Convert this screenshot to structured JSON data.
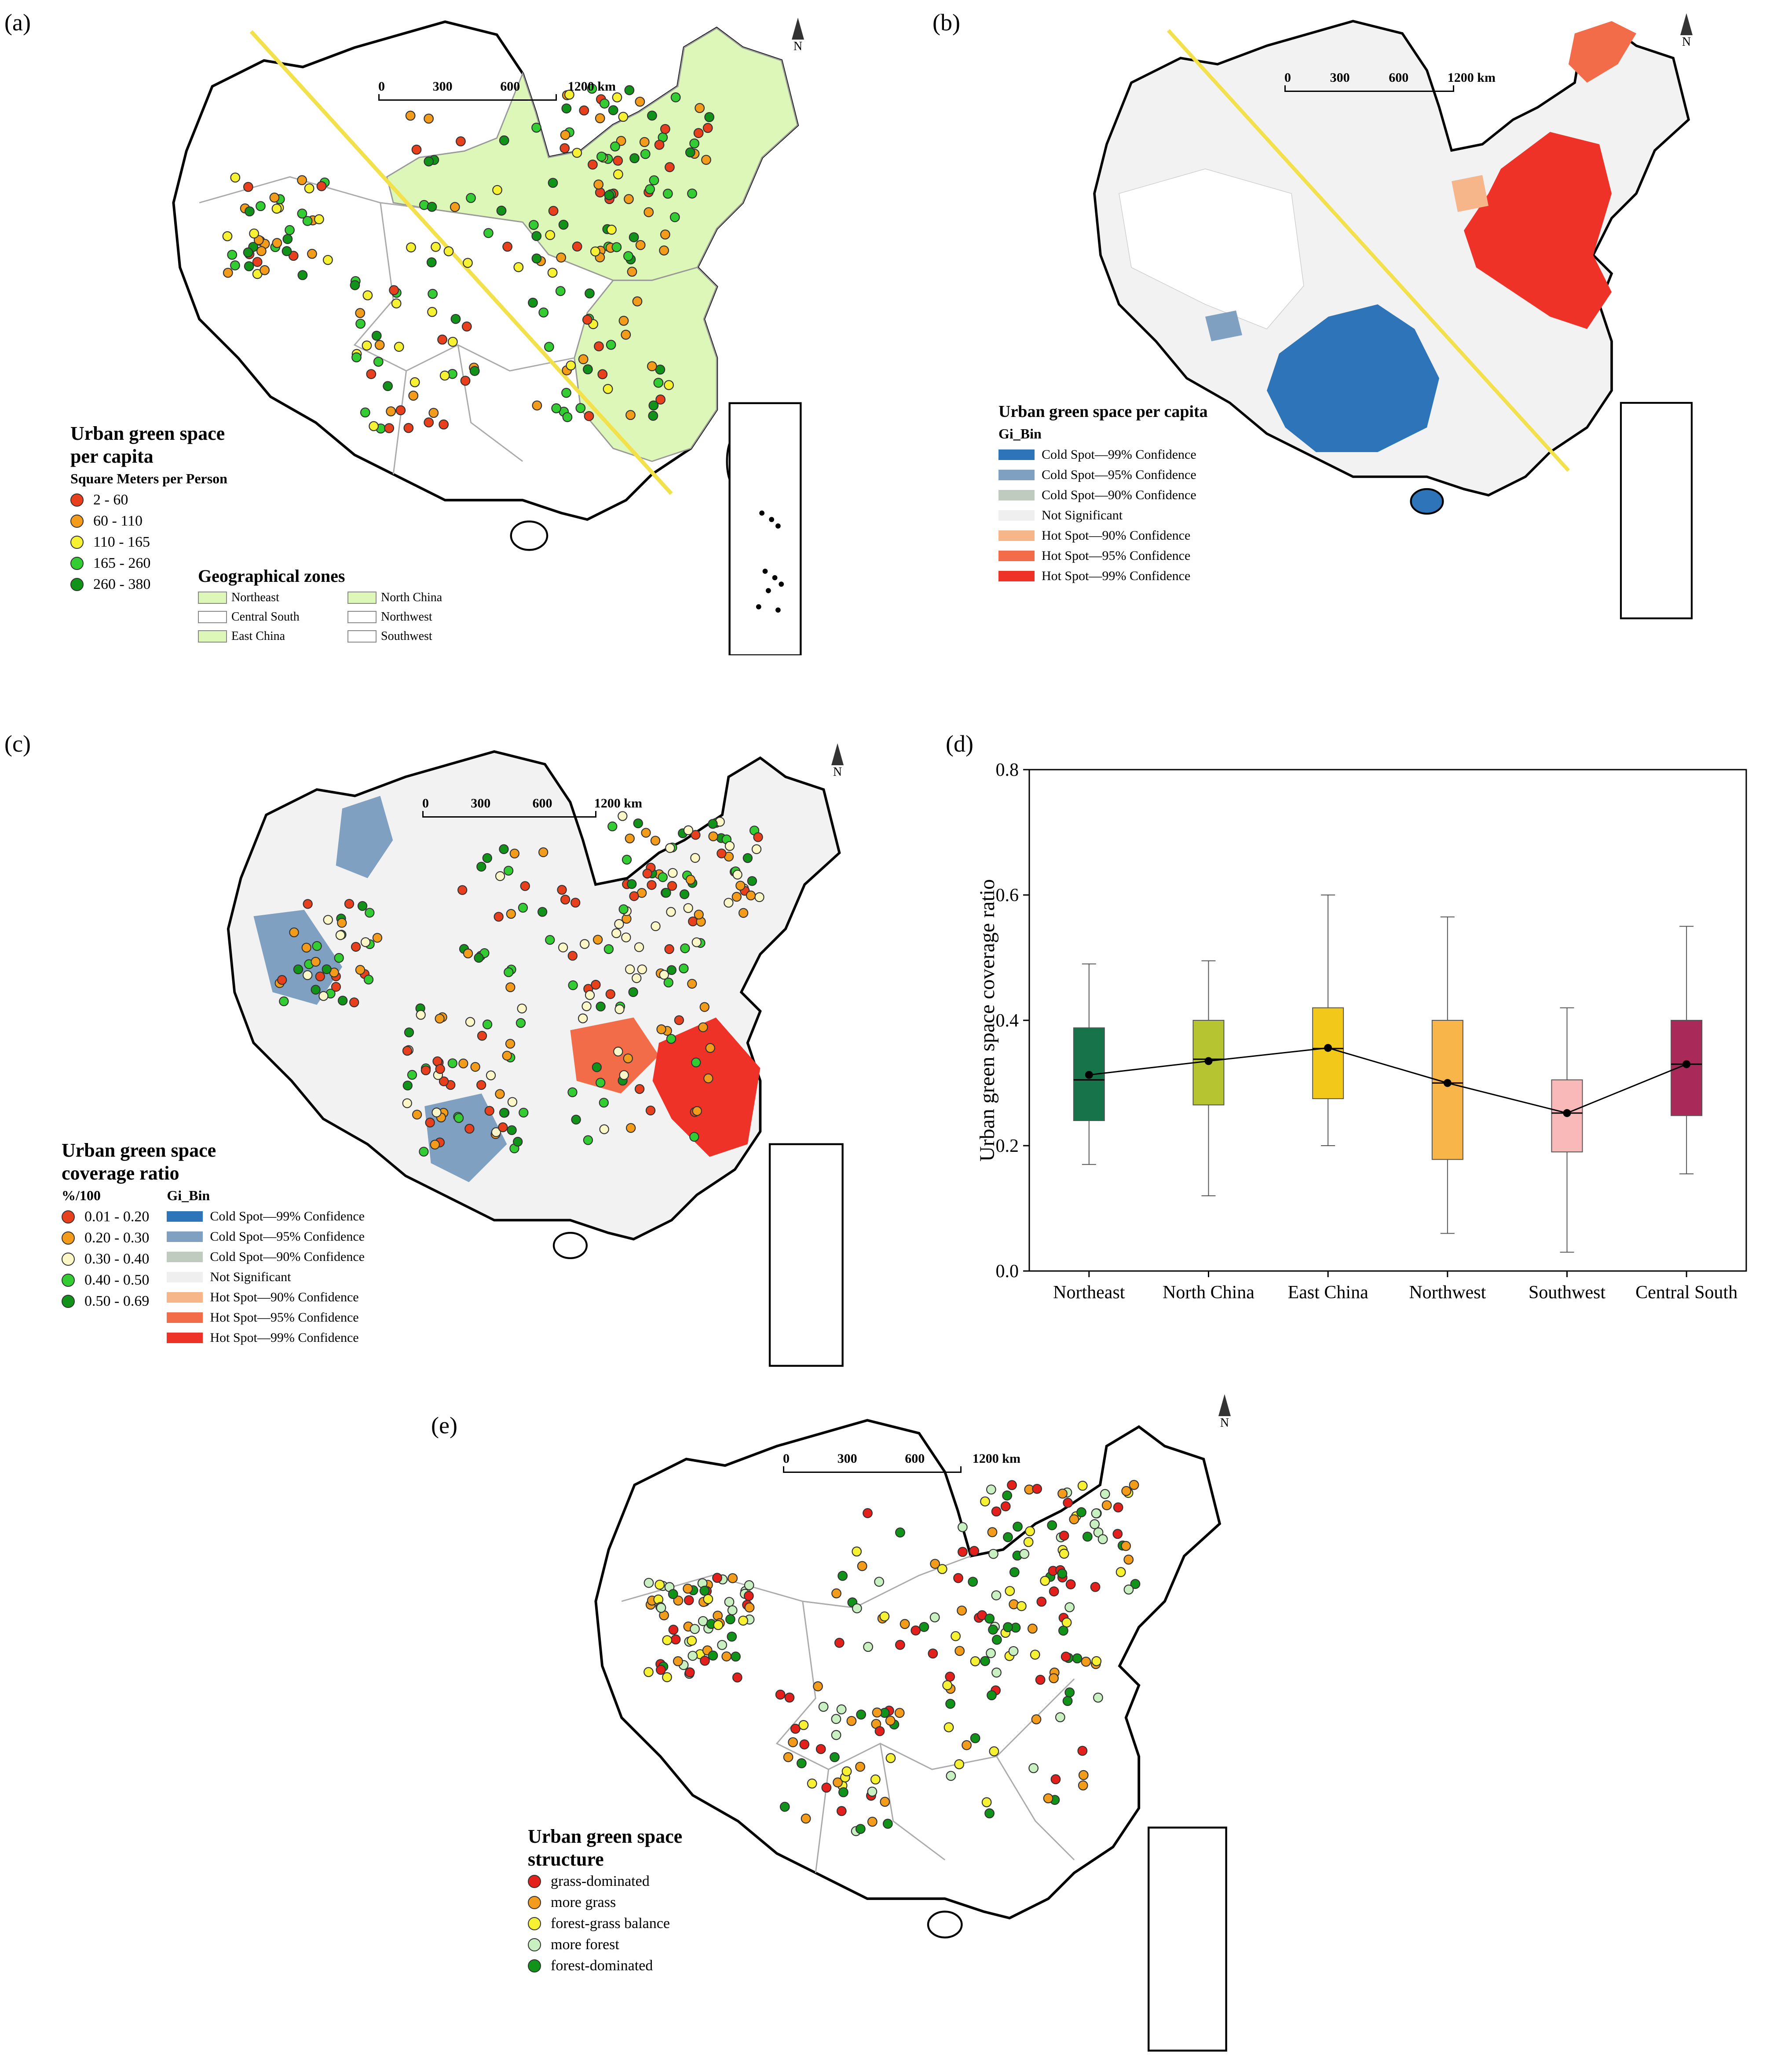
{
  "panel_a": {
    "label": "(a)",
    "scale": {
      "t0": "0",
      "t1": "300",
      "t2": "600",
      "t3": "1200 km"
    },
    "north": "N",
    "legend_title": "Urban green space per capita",
    "legend_sub": "Square Meters per Person",
    "classes": [
      {
        "label": "2 - 60",
        "color": "#e8401c"
      },
      {
        "label": "60 - 110",
        "color": "#f39c1b"
      },
      {
        "label": "110 - 165",
        "color": "#f6f233"
      },
      {
        "label": "165 - 260",
        "color": "#33cc33"
      },
      {
        "label": "260 - 380",
        "color": "#11931a"
      }
    ],
    "zones_title": "Geographical zones",
    "zones": [
      {
        "label": "Northeast",
        "fill": "#ddf7b8"
      },
      {
        "label": "North China",
        "fill": "#ddf7b8"
      },
      {
        "label": "Central South",
        "fill": "#ffffff"
      },
      {
        "label": "Northwest",
        "fill": "#ffffff"
      },
      {
        "label": "East China",
        "fill": "#ddf7b8"
      },
      {
        "label": "Southwest",
        "fill": "#ffffff"
      }
    ]
  },
  "panel_b": {
    "label": "(b)",
    "scale": {
      "t0": "0",
      "t1": "300",
      "t2": "600",
      "t3": "1200 km"
    },
    "north": "N",
    "legend_title": "Urban green space per capita",
    "legend_sub": "Gi_Bin",
    "bins": [
      {
        "label": "Cold Spot—99% Confidence",
        "color": "#2e74b9"
      },
      {
        "label": "Cold Spot—95% Confidence",
        "color": "#7fa0c0"
      },
      {
        "label": "Cold Spot—90% Confidence",
        "color": "#c0cbc0"
      },
      {
        "label": "Not Significant",
        "color": "#efefef"
      },
      {
        "label": "Hot Spot—90% Confidence",
        "color": "#f7b58a"
      },
      {
        "label": "Hot Spot—95% Confidence",
        "color": "#f26c4a"
      },
      {
        "label": "Hot Spot—99% Confidence",
        "color": "#ee3228"
      }
    ]
  },
  "panel_c": {
    "label": "(c)",
    "scale": {
      "t0": "0",
      "t1": "300",
      "t2": "600",
      "t3": "1200 km"
    },
    "north": "N",
    "legend_title": "Urban green space coverage ratio",
    "legend_sub": "%/100",
    "classes": [
      {
        "label": "0.01 - 0.20",
        "color": "#e8401c"
      },
      {
        "label": "0.20 - 0.30",
        "color": "#f39c1b"
      },
      {
        "label": "0.30 - 0.40",
        "color": "#fbf7c6"
      },
      {
        "label": "0.40 - 0.50",
        "color": "#33cc33"
      },
      {
        "label": "0.50 - 0.69",
        "color": "#11931a"
      }
    ],
    "bin_title": "Gi_Bin",
    "bins": [
      {
        "label": "Cold Spot—99% Confidence",
        "color": "#2e74b9"
      },
      {
        "label": "Cold Spot—95% Confidence",
        "color": "#7fa0c0"
      },
      {
        "label": "Cold Spot—90% Confidence",
        "color": "#c0cbc0"
      },
      {
        "label": "Not Significant",
        "color": "#efefef"
      },
      {
        "label": "Hot Spot—90% Confidence",
        "color": "#f7b58a"
      },
      {
        "label": "Hot Spot—95% Confidence",
        "color": "#f26c4a"
      },
      {
        "label": "Hot Spot—99% Confidence",
        "color": "#ee3228"
      }
    ]
  },
  "panel_d": {
    "label": "(d)",
    "chart_data": {
      "type": "box",
      "title": "",
      "xlabel": "",
      "ylabel": "Urban green space coverage ratio",
      "ylim": [
        0.0,
        0.8
      ],
      "yticks": [
        "0.0",
        "0.2",
        "0.4",
        "0.6",
        "0.8"
      ],
      "ytick_values": [
        0.0,
        0.2,
        0.4,
        0.6,
        0.8
      ],
      "categories": [
        "Northeast",
        "North China",
        "East China",
        "Northwest",
        "Southwest",
        "Central South"
      ],
      "boxes": [
        {
          "min": 0.17,
          "q1": 0.24,
          "median": 0.305,
          "q3": 0.388,
          "max": 0.49,
          "mean": 0.313,
          "color": "#16734a"
        },
        {
          "min": 0.12,
          "q1": 0.265,
          "median": 0.338,
          "q3": 0.4,
          "max": 0.495,
          "mean": 0.335,
          "color": "#b5c430"
        },
        {
          "min": 0.2,
          "q1": 0.275,
          "median": 0.355,
          "q3": 0.42,
          "max": 0.6,
          "mean": 0.356,
          "color": "#f2c81b"
        },
        {
          "min": 0.06,
          "q1": 0.178,
          "median": 0.3,
          "q3": 0.4,
          "max": 0.565,
          "mean": 0.3,
          "color": "#f8b54a"
        },
        {
          "min": 0.03,
          "q1": 0.19,
          "median": 0.252,
          "q3": 0.305,
          "max": 0.42,
          "mean": 0.252,
          "color": "#f9b9b9"
        },
        {
          "min": 0.155,
          "q1": 0.248,
          "median": 0.33,
          "q3": 0.4,
          "max": 0.55,
          "mean": 0.33,
          "color": "#a92a58"
        }
      ]
    }
  },
  "panel_e": {
    "label": "(e)",
    "scale": {
      "t0": "0",
      "t1": "300",
      "t2": "600",
      "t3": "1200 km"
    },
    "north": "N",
    "legend_title": "Urban green space structure",
    "classes": [
      {
        "label": "grass-dominated",
        "color": "#e3201c"
      },
      {
        "label": "more grass",
        "color": "#f39c1b"
      },
      {
        "label": "forest-grass balance",
        "color": "#f6f233"
      },
      {
        "label": "more forest",
        "color": "#c9f0c0"
      },
      {
        "label": "forest-dominated",
        "color": "#11931a"
      }
    ]
  }
}
